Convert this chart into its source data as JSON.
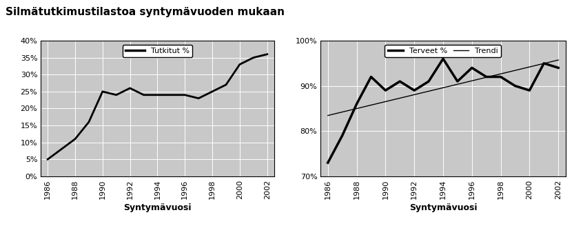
{
  "title": "Silmätutkimustilastoa syntymävuoden mukaan",
  "years": [
    1986,
    1987,
    1988,
    1989,
    1990,
    1991,
    1992,
    1993,
    1994,
    1995,
    1996,
    1997,
    1998,
    1999,
    2000,
    2001,
    2002
  ],
  "tutkitut": [
    0.05,
    0.08,
    0.11,
    0.16,
    0.25,
    0.24,
    0.26,
    0.24,
    0.24,
    0.24,
    0.24,
    0.23,
    0.25,
    0.27,
    0.33,
    0.35,
    0.36
  ],
  "terveet": [
    0.73,
    0.79,
    0.86,
    0.92,
    0.89,
    0.91,
    0.89,
    0.91,
    0.96,
    0.91,
    0.94,
    0.92,
    0.92,
    0.9,
    0.89,
    0.95,
    0.94
  ],
  "xlabel": "Syntymävuosi",
  "legend1": "Tutkitut %",
  "legend2_line1": "Terveet %",
  "legend2_line2": "Trendi",
  "plot1_ylim": [
    0.0,
    0.4
  ],
  "plot1_yticks": [
    0.0,
    0.05,
    0.1,
    0.15,
    0.2,
    0.25,
    0.3,
    0.35,
    0.4
  ],
  "plot2_ylim": [
    0.7,
    1.0
  ],
  "plot2_yticks": [
    0.7,
    0.8,
    0.9,
    1.0
  ],
  "xticks": [
    1986,
    1988,
    1990,
    1992,
    1994,
    1996,
    1998,
    2000,
    2002
  ],
  "bg_color": "#c8c8c8",
  "line_color": "#000000",
  "title_fontsize": 11,
  "axis_fontsize": 9,
  "tick_fontsize": 8,
  "legend_fontsize": 8
}
